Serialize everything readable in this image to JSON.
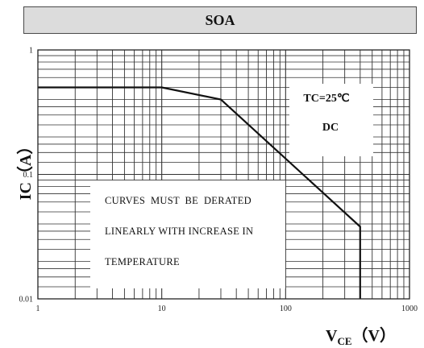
{
  "title": "SOA",
  "chart_data": {
    "type": "line",
    "title": "SOA",
    "ylabel": "IC（A）",
    "xlabel_main": "V",
    "xlabel_sub": "CE",
    "xlabel_unit": "（V）",
    "x_scale": "log",
    "y_scale": "log",
    "xlim": [
      1,
      1000
    ],
    "ylim": [
      0.01,
      1
    ],
    "x_ticks": [
      1,
      10,
      100,
      1000
    ],
    "x_tick_labels": [
      "1",
      "10",
      "100",
      "1000"
    ],
    "y_ticks": [
      0.01,
      0.1,
      1
    ],
    "y_tick_labels": [
      "0.01",
      "0.1",
      "1"
    ],
    "grid": true,
    "series": [
      {
        "x": [
          1,
          10,
          30,
          400,
          400
        ],
        "y": [
          0.5,
          0.5,
          0.4,
          0.038,
          0.01
        ]
      }
    ],
    "annotations": {
      "condition_1": "TC=25℃",
      "condition_2": "DC",
      "note_line_1": "CURVES  MUST  BE  DERATED",
      "note_line_2": "LINEARLY WITH INCREASE IN",
      "note_line_3": "TEMPERATURE"
    },
    "colors": {
      "grid": "#333333",
      "curve": "#111111",
      "title_bg": "#dcdcdc"
    }
  }
}
